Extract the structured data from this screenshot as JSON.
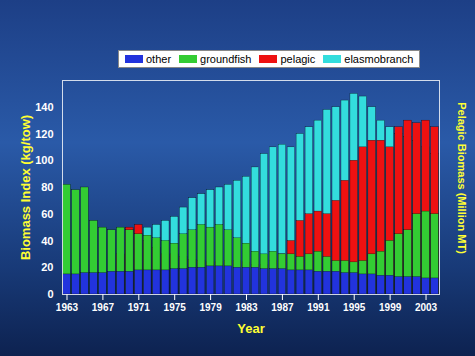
{
  "chart_data": {
    "type": "bar",
    "xlabel": "Year",
    "ylabel": "Biomass Index (kg/tow)",
    "y2label": "Pelagic Biomass (Million MT)",
    "x": [
      1963,
      1964,
      1965,
      1966,
      1967,
      1968,
      1969,
      1970,
      1971,
      1972,
      1973,
      1974,
      1975,
      1976,
      1977,
      1978,
      1979,
      1980,
      1981,
      1982,
      1983,
      1984,
      1985,
      1986,
      1987,
      1988,
      1989,
      1990,
      1991,
      1992,
      1993,
      1994,
      1995,
      1996,
      1997,
      1998,
      1999,
      2000,
      2001,
      2002,
      2003,
      2004
    ],
    "xlim": [
      1962.5,
      2004.5
    ],
    "xticks": [
      1963,
      1967,
      1971,
      1975,
      1979,
      1983,
      1987,
      1991,
      1995,
      1999,
      2003
    ],
    "ylim": [
      0,
      160
    ],
    "yticks": [
      0,
      20,
      40,
      60,
      80,
      100,
      120,
      140
    ],
    "grid": false,
    "stacked": false,
    "legend": "top",
    "series": [
      {
        "name": "other",
        "color": "#2233dd",
        "values": [
          15,
          15,
          16,
          16,
          16,
          17,
          17,
          17,
          18,
          18,
          18,
          18,
          19,
          19,
          20,
          20,
          21,
          21,
          21,
          20,
          20,
          20,
          19,
          19,
          19,
          18,
          18,
          18,
          17,
          17,
          17,
          16,
          16,
          15,
          15,
          14,
          14,
          13,
          13,
          13,
          12,
          12
        ]
      },
      {
        "name": "groundfish",
        "color": "#33cc33",
        "values": [
          82,
          78,
          80,
          55,
          50,
          48,
          50,
          48,
          45,
          44,
          42,
          40,
          38,
          45,
          48,
          52,
          50,
          52,
          48,
          42,
          38,
          32,
          30,
          32,
          30,
          30,
          28,
          30,
          32,
          28,
          25,
          25,
          24,
          25,
          30,
          32,
          40,
          45,
          48,
          60,
          62,
          60
        ]
      },
      {
        "name": "pelagic",
        "color": "#ee1111",
        "values": [
          null,
          null,
          null,
          null,
          null,
          null,
          30,
          50,
          52,
          40,
          35,
          30,
          30,
          28,
          26,
          25,
          24,
          24,
          25,
          25,
          24,
          22,
          22,
          25,
          30,
          40,
          55,
          60,
          62,
          60,
          70,
          85,
          100,
          110,
          115,
          115,
          110,
          125,
          130,
          128,
          130,
          125
        ]
      },
      {
        "name": "elasmobranch",
        "color": "#33dddd",
        "values": [
          null,
          null,
          null,
          null,
          null,
          null,
          null,
          null,
          null,
          50,
          52,
          55,
          58,
          65,
          72,
          75,
          78,
          80,
          82,
          85,
          88,
          95,
          105,
          110,
          112,
          110,
          120,
          125,
          130,
          138,
          140,
          145,
          150,
          148,
          140,
          130,
          125,
          120,
          118,
          115,
          110,
          105
        ]
      }
    ]
  }
}
